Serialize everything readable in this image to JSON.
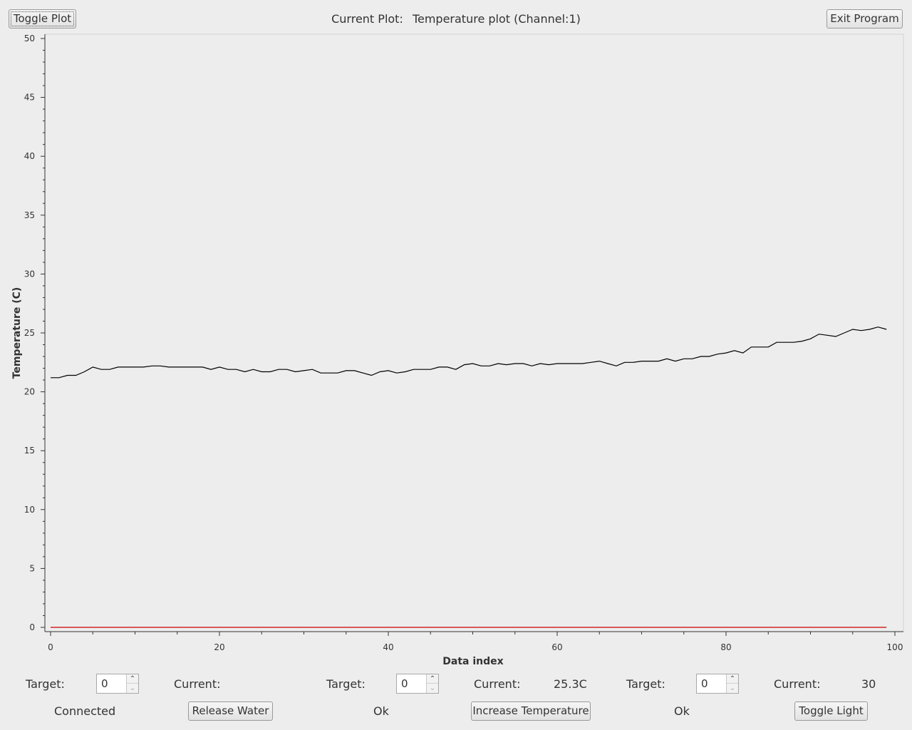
{
  "header": {
    "toggle_plot_label": "Toggle Plot",
    "current_plot_label": "Current Plot:",
    "current_plot_value": "Temperature plot (Channel:1)",
    "exit_label": "Exit Program"
  },
  "chart_data": {
    "type": "line",
    "title": "",
    "xlabel": "Data index",
    "ylabel": "Temperature (C)",
    "xlim": [
      0,
      100
    ],
    "ylim": [
      0,
      50
    ],
    "x_ticks": [
      "0",
      "20",
      "40",
      "60",
      "80",
      "100"
    ],
    "y_ticks": [
      "0",
      "5",
      "10",
      "15",
      "20",
      "25",
      "30",
      "35",
      "40",
      "45",
      "50"
    ],
    "grid": false,
    "series": [
      {
        "color": "#000000",
        "x": [
          0,
          1,
          2,
          3,
          4,
          5,
          6,
          7,
          8,
          9,
          10,
          11,
          12,
          13,
          14,
          15,
          16,
          17,
          18,
          19,
          20,
          21,
          22,
          23,
          24,
          25,
          26,
          27,
          28,
          29,
          30,
          31,
          32,
          33,
          34,
          35,
          36,
          37,
          38,
          39,
          40,
          41,
          42,
          43,
          44,
          45,
          46,
          47,
          48,
          49,
          50,
          51,
          52,
          53,
          54,
          55,
          56,
          57,
          58,
          59,
          60,
          61,
          62,
          63,
          64,
          65,
          66,
          67,
          68,
          69,
          70,
          71,
          72,
          73,
          74,
          75,
          76,
          77,
          78,
          79,
          80,
          81,
          82,
          83,
          84,
          85,
          86,
          87,
          88,
          89,
          90,
          91,
          92,
          93,
          94,
          95,
          96,
          97,
          98,
          99
        ],
        "y": [
          21.2,
          21.2,
          21.4,
          21.4,
          21.7,
          22.1,
          21.9,
          21.9,
          22.1,
          22.1,
          22.1,
          22.1,
          22.2,
          22.2,
          22.1,
          22.1,
          22.1,
          22.1,
          22.1,
          21.9,
          22.1,
          21.9,
          21.9,
          21.7,
          21.9,
          21.7,
          21.7,
          21.9,
          21.9,
          21.7,
          21.8,
          21.9,
          21.6,
          21.6,
          21.6,
          21.8,
          21.8,
          21.6,
          21.4,
          21.7,
          21.8,
          21.6,
          21.7,
          21.9,
          21.9,
          21.9,
          22.1,
          22.1,
          21.9,
          22.3,
          22.4,
          22.2,
          22.2,
          22.4,
          22.3,
          22.4,
          22.4,
          22.2,
          22.4,
          22.3,
          22.4,
          22.4,
          22.4,
          22.4,
          22.5,
          22.6,
          22.4,
          22.2,
          22.5,
          22.5,
          22.6,
          22.6,
          22.6,
          22.8,
          22.6,
          22.8,
          22.8,
          23.0,
          23.0,
          23.2,
          23.3,
          23.5,
          23.3,
          23.8,
          23.8,
          23.8,
          24.2,
          24.2,
          24.2,
          24.3,
          24.5,
          24.9,
          24.8,
          24.7,
          25.0,
          25.3,
          25.2,
          25.3,
          25.5,
          25.3
        ]
      },
      {
        "color": "#cc0000",
        "x": [
          0,
          99
        ],
        "y": [
          0,
          0
        ]
      }
    ]
  },
  "controls": {
    "group1": {
      "target_label": "Target:",
      "target_value": "0",
      "current_label": "Current:",
      "current_value": "",
      "status": "Connected",
      "button": "Release Water"
    },
    "group2": {
      "target_label": "Target:",
      "target_value": "0",
      "current_label": "Current:",
      "current_value": "25.3C",
      "status": "Ok",
      "button": "Increase Temperature"
    },
    "group3": {
      "target_label": "Target:",
      "target_value": "0",
      "current_label": "Current:",
      "current_value": "30",
      "status": "Ok",
      "button": "Toggle Light"
    }
  },
  "icons": {
    "spin_up": "chevron-up-icon",
    "spin_down": "chevron-down-icon"
  }
}
